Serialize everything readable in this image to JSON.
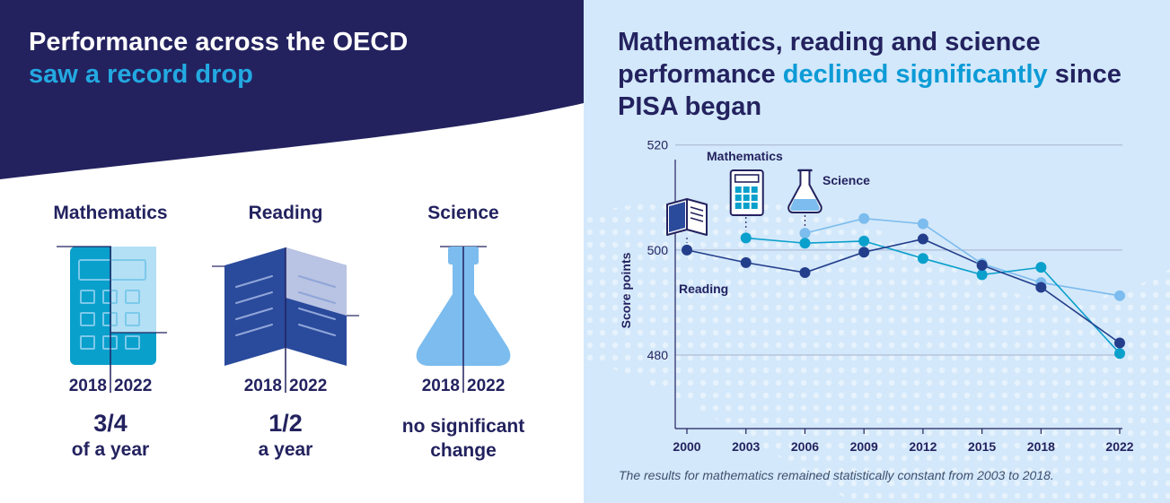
{
  "left_panel": {
    "title_line1": "Performance across the OECD",
    "title_line2": "saw a record drop",
    "subjects": [
      {
        "name": "Mathematics",
        "year_a": "2018",
        "year_b": "2022",
        "amount": "3/4",
        "unit": "of a year",
        "change_fraction_of_icon": 0.75,
        "icon": "calculator-icon"
      },
      {
        "name": "Reading",
        "year_a": "2018",
        "year_b": "2022",
        "amount": "1/2",
        "unit": "a year",
        "change_fraction_of_icon": 0.5,
        "icon": "open-book-icon"
      },
      {
        "name": "Science",
        "year_a": "2018",
        "year_b": "2022",
        "text_line1": "no significant",
        "text_line2": "change",
        "change_fraction_of_icon": 0,
        "icon": "flask-icon"
      }
    ]
  },
  "right_panel": {
    "title_part1": "Mathematics, reading and science performance ",
    "title_highlight": "declined significantly",
    "title_part2": " since PISA began",
    "footnote": "The results for mathematics remained statistically constant from 2003 to 2018."
  },
  "colors": {
    "navy": "#23225f",
    "bright_blue": "#23a9e1",
    "reading": "#233e8b",
    "mathematics": "#0aa0cc",
    "science": "#7cbcee",
    "right_bg": "#d3e8fa"
  },
  "chart_data": {
    "type": "line",
    "ylabel": "Score points",
    "ylim": [
      466,
      522
    ],
    "yticks": [
      480,
      500,
      520
    ],
    "x": [
      2000,
      2003,
      2006,
      2009,
      2012,
      2015,
      2018,
      2022
    ],
    "x_labels": [
      "2000",
      "2003",
      "2006",
      "2009",
      "2012",
      "2015",
      "2018",
      "2022"
    ],
    "grid": true,
    "series": [
      {
        "name": "Reading",
        "icon": "open-book-icon",
        "color": "#233e8b",
        "values": [
          500.0,
          497.6,
          495.7,
          499.6,
          502.1,
          497.1,
          492.9,
          482.3
        ]
      },
      {
        "name": "Mathematics",
        "icon": "calculator-icon",
        "color": "#0aa0cc",
        "values": [
          null,
          502.3,
          501.3,
          501.7,
          498.4,
          495.3,
          496.7,
          480.3
        ]
      },
      {
        "name": "Science",
        "icon": "flask-icon",
        "color": "#7cbcee",
        "values": [
          null,
          null,
          503.2,
          506.0,
          505.0,
          497.4,
          493.8,
          491.3
        ]
      }
    ]
  }
}
